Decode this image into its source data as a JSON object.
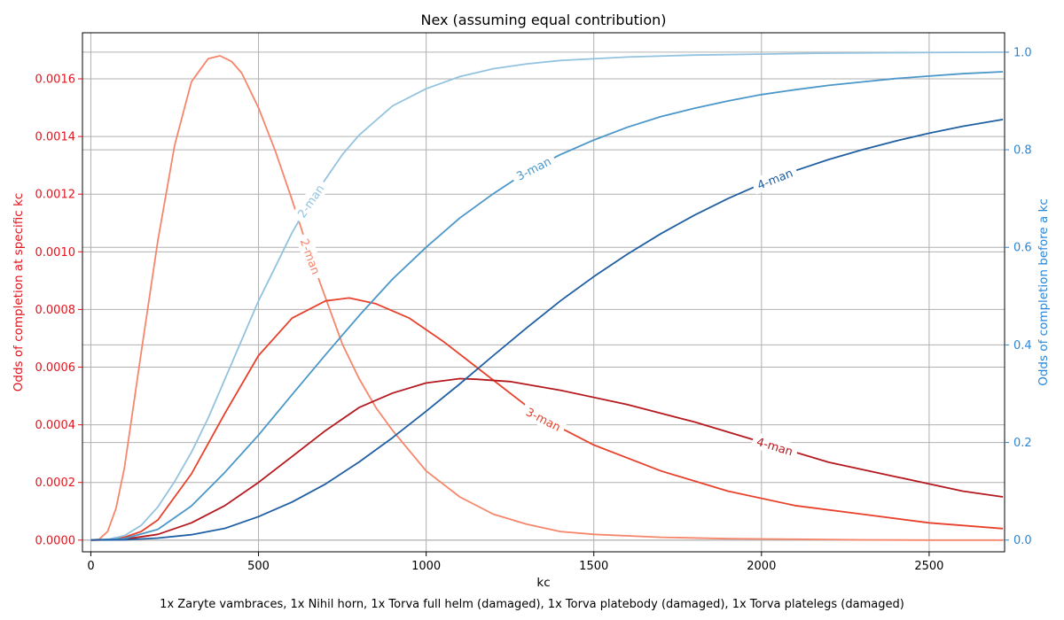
{
  "chart_data": {
    "type": "line",
    "title": "Nex (assuming equal contribution)",
    "xlabel": "kc",
    "ylabel_left": "Odds of completion at specific kc",
    "ylabel_right": "Odds of completion before a kc",
    "caption": "1x Zaryte vambraces, 1x Nihil horn, 1x Torva full helm (damaged), 1x Torva platebody (damaged), 1x Torva platelegs (damaged)",
    "xlim": [
      -25,
      2725
    ],
    "ylim_left": [
      -4.05e-05,
      0.0017598
    ],
    "ylim_right": [
      -0.0241,
      1.0398
    ],
    "x_ticks": [
      0,
      500,
      1000,
      1500,
      2000,
      2500
    ],
    "y_ticks_left": [
      "0.0000",
      "0.0002",
      "0.0004",
      "0.0006",
      "0.0008",
      "0.0010",
      "0.0012",
      "0.0014",
      "0.0016"
    ],
    "y_ticks_left_values": [
      0,
      0.0002,
      0.0004,
      0.0006,
      0.0008,
      0.001,
      0.0012,
      0.0014,
      0.0016
    ],
    "y_ticks_right": [
      "0.0",
      "0.2",
      "0.4",
      "0.6",
      "0.8",
      "1.0"
    ],
    "y_ticks_right_values": [
      0,
      0.2,
      0.4,
      0.6,
      0.8,
      1.0
    ],
    "grid": true,
    "colors": {
      "left_axis": "#e0141c",
      "right_axis": "#2a86d8"
    },
    "series_pdf": [
      {
        "name": "2-man",
        "color": "#f6866b",
        "label_at": 655,
        "x": [
          0,
          25,
          50,
          75,
          100,
          150,
          200,
          250,
          300,
          350,
          385,
          420,
          450,
          500,
          550,
          600,
          650,
          700,
          750,
          800,
          850,
          900,
          1000,
          1100,
          1200,
          1300,
          1400,
          1500,
          1700,
          1900,
          2100,
          2300,
          2500,
          2720
        ],
        "y": [
          0,
          3e-06,
          3e-05,
          0.00011,
          0.00025,
          0.00065,
          0.00104,
          0.00137,
          0.00159,
          0.00167,
          0.00168,
          0.00166,
          0.00162,
          0.0015,
          0.00135,
          0.00118,
          0.001,
          0.00084,
          0.00068,
          0.00056,
          0.00046,
          0.00038,
          0.00024,
          0.00015,
          9e-05,
          5.5e-05,
          3e-05,
          2e-05,
          1e-05,
          5e-06,
          3e-06,
          1e-06,
          0,
          0
        ]
      },
      {
        "name": "3-man",
        "color": "#e8412b",
        "label_at": 1350,
        "x": [
          0,
          50,
          100,
          150,
          200,
          300,
          400,
          500,
          600,
          700,
          770,
          850,
          950,
          1050,
          1150,
          1250,
          1350,
          1500,
          1700,
          1900,
          2100,
          2300,
          2500,
          2720
        ],
        "y": [
          0,
          1e-06,
          1e-05,
          3e-05,
          7e-05,
          0.00023,
          0.00044,
          0.00064,
          0.00077,
          0.00083,
          0.00084,
          0.00082,
          0.00077,
          0.00069,
          0.0006,
          0.00051,
          0.00042,
          0.00033,
          0.00024,
          0.00017,
          0.00012,
          9e-05,
          6e-05,
          4e-05
        ]
      },
      {
        "name": "4-man",
        "color": "#b5191e",
        "label_at": 2040,
        "x": [
          0,
          100,
          200,
          300,
          400,
          500,
          600,
          700,
          800,
          900,
          1000,
          1100,
          1150,
          1250,
          1400,
          1600,
          1800,
          2000,
          2200,
          2400,
          2600,
          2720
        ],
        "y": [
          0,
          3e-06,
          2e-05,
          6e-05,
          0.00012,
          0.0002,
          0.00029,
          0.00038,
          0.00046,
          0.00051,
          0.000545,
          0.00056,
          0.000558,
          0.00055,
          0.00052,
          0.00047,
          0.00041,
          0.00034,
          0.00027,
          0.00022,
          0.00017,
          0.00015
        ]
      }
    ],
    "series_cdf": [
      {
        "name": "2-man",
        "color": "#93c3df",
        "label_at": 655,
        "x": [
          0,
          50,
          100,
          150,
          200,
          250,
          300,
          350,
          400,
          450,
          500,
          550,
          600,
          650,
          700,
          750,
          800,
          850,
          900,
          1000,
          1100,
          1200,
          1300,
          1400,
          1600,
          1800,
          2000,
          2200,
          2400,
          2720
        ],
        "y": [
          0,
          0.001,
          0.009,
          0.03,
          0.068,
          0.12,
          0.18,
          0.25,
          0.33,
          0.41,
          0.49,
          0.56,
          0.63,
          0.69,
          0.74,
          0.79,
          0.83,
          0.86,
          0.89,
          0.925,
          0.95,
          0.966,
          0.976,
          0.983,
          0.99,
          0.994,
          0.996,
          0.998,
          0.999,
          1.0
        ]
      },
      {
        "name": "3-man",
        "color": "#4b97c9",
        "label_at": 1320,
        "x": [
          0,
          100,
          200,
          300,
          400,
          500,
          600,
          700,
          800,
          900,
          1000,
          1100,
          1200,
          1300,
          1400,
          1500,
          1600,
          1700,
          1800,
          1900,
          2000,
          2100,
          2200,
          2300,
          2400,
          2500,
          2600,
          2720
        ],
        "y": [
          0,
          0.003,
          0.022,
          0.07,
          0.139,
          0.215,
          0.298,
          0.38,
          0.46,
          0.535,
          0.6,
          0.66,
          0.71,
          0.755,
          0.79,
          0.82,
          0.846,
          0.868,
          0.885,
          0.9,
          0.913,
          0.923,
          0.932,
          0.939,
          0.946,
          0.951,
          0.956,
          0.96
        ]
      },
      {
        "name": "4-man",
        "color": "#1f5fa2",
        "label_at": 2040,
        "x": [
          0,
          100,
          200,
          300,
          400,
          500,
          600,
          700,
          800,
          900,
          1000,
          1100,
          1200,
          1300,
          1400,
          1500,
          1600,
          1700,
          1800,
          1900,
          2000,
          2100,
          2200,
          2300,
          2400,
          2500,
          2600,
          2720
        ],
        "y": [
          0,
          0.0005,
          0.004,
          0.011,
          0.024,
          0.048,
          0.078,
          0.115,
          0.16,
          0.21,
          0.264,
          0.32,
          0.378,
          0.435,
          0.49,
          0.54,
          0.586,
          0.628,
          0.666,
          0.7,
          0.73,
          0.757,
          0.78,
          0.8,
          0.818,
          0.834,
          0.848,
          0.862
        ]
      }
    ]
  }
}
